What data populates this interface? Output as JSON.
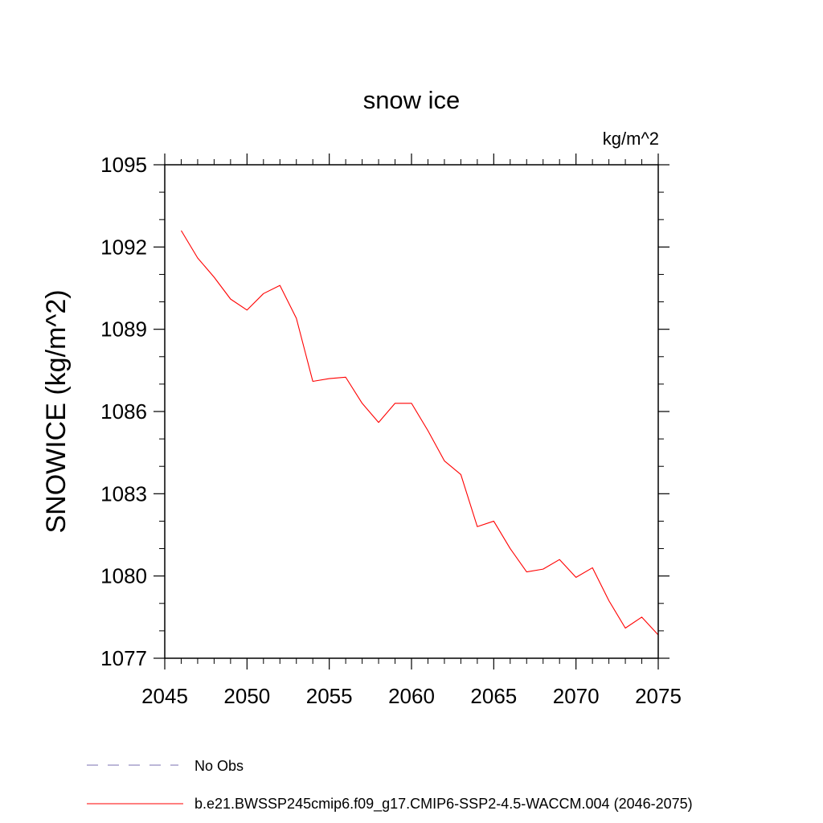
{
  "chart_data": {
    "type": "line",
    "title": "snow ice",
    "units": "kg/m^2",
    "ylabel": "SNOWICE  (kg/m^2)",
    "xlabel": "",
    "xlim": [
      2045,
      2075
    ],
    "ylim": [
      1077,
      1095
    ],
    "xticks": [
      2045,
      2050,
      2055,
      2060,
      2065,
      2070,
      2075
    ],
    "yticks": [
      1077,
      1080,
      1083,
      1086,
      1089,
      1092,
      1095
    ],
    "x_minor_step": 1,
    "y_minor_step": 1,
    "x_tick_labels": [
      "2045",
      "2050",
      "2055",
      "2060",
      "2065",
      "2070",
      "2075"
    ],
    "y_tick_labels": [
      "1077",
      "1080",
      "1083",
      "1086",
      "1089",
      "1092",
      "1095"
    ],
    "series": [
      {
        "name": "b.e21.BWSSP245cmip6.f09_g17.CMIP6-SSP2-4.5-WACCM.004 (2046-2075)",
        "color": "#ff0000",
        "x": [
          2046,
          2047,
          2048,
          2049,
          2050,
          2051,
          2052,
          2053,
          2054,
          2055,
          2056,
          2057,
          2058,
          2059,
          2060,
          2061,
          2062,
          2063,
          2064,
          2065,
          2066,
          2067,
          2068,
          2069,
          2070,
          2071,
          2072,
          2073,
          2074,
          2075
        ],
        "values": [
          1092.6,
          1091.6,
          1090.9,
          1090.1,
          1089.7,
          1090.3,
          1090.6,
          1089.4,
          1087.1,
          1087.2,
          1087.25,
          1086.3,
          1085.6,
          1086.3,
          1086.3,
          1085.3,
          1084.2,
          1083.7,
          1081.8,
          1082.0,
          1081.0,
          1080.15,
          1080.25,
          1080.6,
          1079.95,
          1080.3,
          1079.1,
          1078.1,
          1078.5,
          1077.85
        ]
      }
    ],
    "legend": [
      {
        "label": "No Obs",
        "style": "dashed",
        "color": "#7a6fb0"
      },
      {
        "label": "b.e21.BWSSP245cmip6.f09_g17.CMIP6-SSP2-4.5-WACCM.004 (2046-2075)",
        "style": "solid",
        "color": "#ff0000"
      }
    ],
    "grid": false,
    "legend_position": "bottom"
  }
}
